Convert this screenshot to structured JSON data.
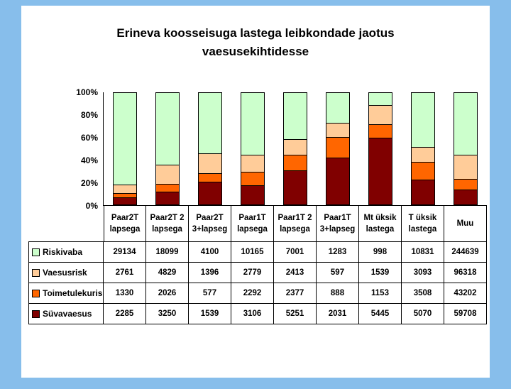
{
  "page": {
    "background": "#87BEEB",
    "slide_background": "#FFFFFF"
  },
  "title": {
    "line1": "Erineva koosseisuga lastega leibkondade jaotus",
    "line2": "vaesusekihtidesse"
  },
  "chart_data": {
    "type": "bar",
    "variant": "stacked-100-percent-column",
    "title": "Erineva koosseisuga lastega leibkondade jaotus vaesusekihtidesse",
    "grid": false,
    "legend_position": "table-left",
    "ylim": [
      0,
      100
    ],
    "y_ticks": [
      "100%",
      "80%",
      "60%",
      "40%",
      "20%",
      "0%"
    ],
    "categories": [
      [
        "Paar2T",
        "lapsega"
      ],
      [
        "Paar2T 2",
        "lapsega"
      ],
      [
        "Paar2T",
        "3+lapseg"
      ],
      [
        "Paar1T",
        "lapsega"
      ],
      [
        "Paar1T 2",
        "lapsega"
      ],
      [
        "Paar1T",
        "3+lapseg"
      ],
      [
        "Mt üksik",
        "lastega"
      ],
      [
        "T üksik",
        "lastega"
      ],
      [
        "Muu"
      ]
    ],
    "series": [
      {
        "name": "Riskivaba",
        "color": "#CCFFCC",
        "values": [
          29134,
          18099,
          4100,
          10165,
          7001,
          1283,
          998,
          10831,
          244639
        ]
      },
      {
        "name": "Vaesusrisk",
        "color": "#FFCC99",
        "values": [
          2761,
          4829,
          1396,
          2779,
          2413,
          597,
          1539,
          3093,
          96318
        ]
      },
      {
        "name": "Toimetulekurisk",
        "color": "#FF6600",
        "values": [
          1330,
          2026,
          577,
          2292,
          2377,
          888,
          1153,
          3508,
          43202
        ]
      },
      {
        "name": "Süvavaesus",
        "color": "#800000",
        "values": [
          2285,
          3250,
          1539,
          3106,
          5251,
          2031,
          5445,
          5070,
          59708
        ]
      }
    ],
    "stack_order_bottom_to_top": [
      "Süvavaesus",
      "Toimetulekurisk",
      "Vaesusrisk",
      "Riskivaba"
    ]
  }
}
